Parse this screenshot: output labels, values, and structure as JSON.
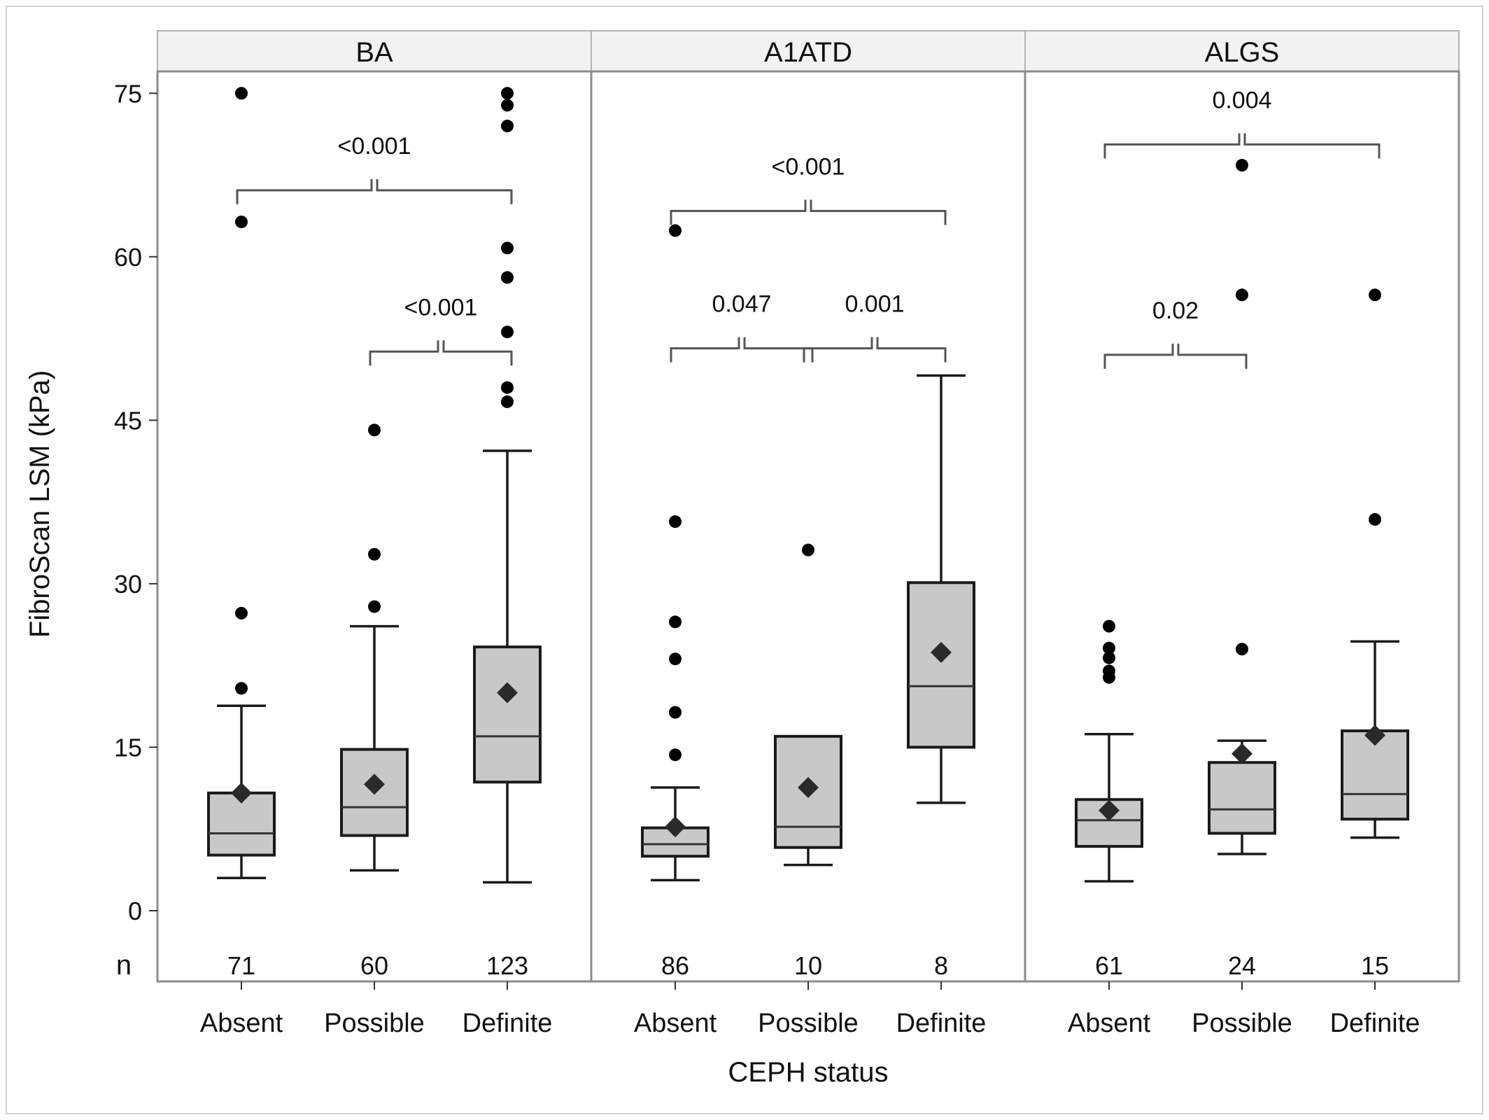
{
  "chart_data": {
    "type": "boxplot",
    "ylabel": "FibroScan LSM (kPa)",
    "xlabel": "CEPH status",
    "n_label": "n",
    "ylim": [
      -5,
      77
    ],
    "yticks": [
      "0",
      "15",
      "30",
      "45",
      "60",
      "75"
    ],
    "categories": [
      "Absent",
      "Possible",
      "Definite"
    ],
    "colors": {
      "box_fill": "#c8c8c8",
      "box_stroke": "#1a1a1a",
      "strip_fill": "#f2f2f2",
      "frame": "#8c8c8c",
      "bracket": "#555555"
    },
    "panels": [
      {
        "name": "BA",
        "groups": [
          {
            "category": "Absent",
            "n": "71",
            "min": 3.0,
            "q1": 5.1,
            "median": 7.1,
            "q3": 10.8,
            "max": 18.8,
            "mean": 10.8,
            "outliers": [
              20.4,
              27.3,
              63.2,
              75.0
            ]
          },
          {
            "category": "Possible",
            "n": "60",
            "min": 3.7,
            "q1": 6.9,
            "median": 9.5,
            "q3": 14.8,
            "max": 26.1,
            "mean": 11.6,
            "outliers": [
              27.9,
              32.7,
              44.1
            ]
          },
          {
            "category": "Definite",
            "n": "123",
            "min": 2.6,
            "q1": 11.8,
            "median": 16.0,
            "q3": 24.2,
            "max": 42.2,
            "mean": 20.0,
            "outliers": [
              46.7,
              48.0,
              53.1,
              58.1,
              60.8,
              72.0,
              73.9,
              75.0
            ]
          }
        ],
        "comparisons": [
          {
            "from": 0,
            "to": 2,
            "level": 66.1,
            "label": "<0.001"
          },
          {
            "from": 1,
            "to": 2,
            "level": 51.3,
            "label": "<0.001"
          }
        ]
      },
      {
        "name": "A1ATD",
        "groups": [
          {
            "category": "Absent",
            "n": "86",
            "min": 2.8,
            "q1": 5.0,
            "median": 6.1,
            "q3": 7.6,
            "max": 11.3,
            "mean": 7.7,
            "outliers": [
              14.3,
              18.2,
              23.1,
              26.5,
              35.7,
              62.4
            ]
          },
          {
            "category": "Possible",
            "n": "10",
            "min": 4.2,
            "q1": 5.8,
            "median": 7.7,
            "q3": 16.0,
            "max": 16.0,
            "mean": 11.3,
            "outliers": [
              33.1
            ]
          },
          {
            "category": "Definite",
            "n": "8",
            "min": 9.9,
            "q1": 15.0,
            "median": 20.6,
            "q3": 30.1,
            "max": 49.1,
            "mean": 23.7,
            "outliers": []
          }
        ],
        "comparisons": [
          {
            "from": 0,
            "to": 2,
            "level": 64.2,
            "label": "<0.001"
          },
          {
            "from": 0,
            "to": 1,
            "level": 51.6,
            "label": "0.047"
          },
          {
            "from": 1,
            "to": 2,
            "level": 51.6,
            "label": "0.001"
          }
        ]
      },
      {
        "name": "ALGS",
        "groups": [
          {
            "category": "Absent",
            "n": "61",
            "min": 2.7,
            "q1": 5.9,
            "median": 8.3,
            "q3": 10.2,
            "max": 16.2,
            "mean": 9.2,
            "outliers": [
              21.4,
              22.0,
              23.2,
              24.1,
              26.1
            ]
          },
          {
            "category": "Possible",
            "n": "24",
            "min": 5.2,
            "q1": 7.1,
            "median": 9.3,
            "q3": 13.6,
            "max": 15.6,
            "mean": 14.4,
            "outliers": [
              24.0,
              56.5,
              68.4
            ]
          },
          {
            "category": "Definite",
            "n": "15",
            "min": 6.7,
            "q1": 8.4,
            "median": 10.7,
            "q3": 16.5,
            "max": 24.7,
            "mean": 16.1,
            "outliers": [
              35.9,
              56.5
            ]
          }
        ],
        "comparisons": [
          {
            "from": 0,
            "to": 2,
            "level": 70.3,
            "label": "0.004"
          },
          {
            "from": 0,
            "to": 1,
            "level": 51.0,
            "label": "0.02"
          }
        ]
      }
    ]
  }
}
